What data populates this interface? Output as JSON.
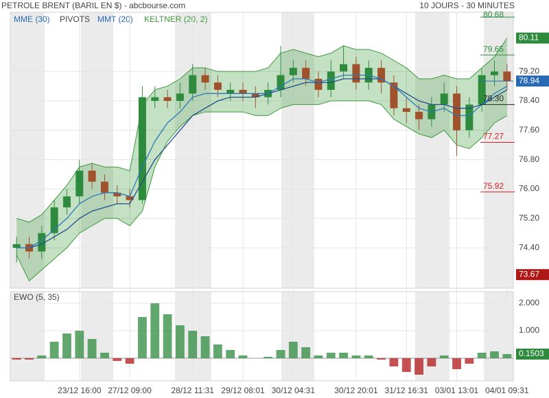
{
  "chart_data": {
    "type": "candlestick",
    "title": "PETROLE BRENT (BARIL EN $) - abcbourse.com",
    "subtitle": "10 JOURS - 30 MINUTES",
    "categories": [
      null,
      null,
      null,
      null,
      null,
      "23/12 16:00",
      null,
      null,
      null,
      "27/12 09:00",
      null,
      null,
      null,
      null,
      "28/12 11:31",
      null,
      null,
      null,
      "29/12 08:01",
      null,
      null,
      null,
      "30/12 04:31",
      null,
      null,
      null,
      null,
      "30/12 20:01",
      null,
      null,
      null,
      "31/12 16:31",
      null,
      null,
      null,
      "03/01 13:01",
      null,
      null,
      null,
      "04/01 09:31"
    ],
    "open": [
      74.4,
      74.5,
      74.3,
      74.8,
      75.5,
      75.8,
      76.5,
      76.2,
      75.9,
      75.8,
      75.7,
      78.4,
      78.5,
      78.4,
      78.6,
      79.1,
      78.9,
      78.6,
      78.7,
      78.6,
      78.5,
      78.7,
      79.1,
      79.3,
      79.0,
      78.7,
      79.2,
      79.4,
      78.9,
      79.3,
      78.9,
      78.2,
      78.1,
      77.9,
      78.3,
      78.6,
      77.6,
      78.3,
      79.1,
      79.2
    ],
    "high": [
      74.7,
      74.7,
      75.0,
      75.7,
      76.0,
      76.8,
      76.7,
      76.4,
      76.1,
      76.0,
      78.8,
      78.8,
      78.7,
      78.9,
      79.4,
      79.3,
      79.1,
      78.9,
      78.9,
      78.8,
      78.9,
      79.9,
      79.5,
      79.5,
      79.2,
      79.5,
      79.9,
      79.6,
      79.5,
      79.5,
      79.1,
      78.5,
      78.3,
      78.5,
      78.9,
      78.8,
      78.5,
      79.3,
      79.5,
      79.4
    ],
    "low": [
      74.0,
      74.1,
      74.1,
      74.6,
      75.3,
      75.6,
      76.0,
      75.7,
      75.6,
      75.5,
      75.6,
      78.2,
      78.2,
      78.2,
      78.4,
      78.7,
      78.5,
      78.4,
      78.4,
      78.2,
      78.3,
      78.5,
      78.9,
      78.8,
      78.5,
      78.5,
      79.0,
      78.7,
      78.7,
      78.6,
      78.0,
      77.8,
      77.6,
      77.7,
      78.1,
      76.9,
      77.4,
      78.1,
      78.8,
      78.7
    ],
    "close": [
      74.5,
      74.3,
      74.8,
      75.5,
      75.8,
      76.5,
      76.2,
      75.9,
      75.8,
      75.7,
      78.5,
      78.5,
      78.4,
      78.6,
      79.1,
      78.9,
      78.7,
      78.7,
      78.6,
      78.5,
      78.7,
      79.1,
      79.3,
      79.0,
      78.7,
      79.2,
      79.4,
      78.9,
      79.3,
      78.9,
      78.2,
      78.1,
      77.9,
      78.3,
      78.6,
      77.6,
      78.3,
      79.1,
      79.2,
      78.94
    ],
    "up_color": "#2e8b3e",
    "down_color": "#a0522d",
    "series": [
      {
        "name": "MME (30)",
        "color": "#1f4e8c",
        "values": [
          74.4,
          74.4,
          74.5,
          74.7,
          74.9,
          75.2,
          75.4,
          75.5,
          75.6,
          75.6,
          76.2,
          76.8,
          77.2,
          77.6,
          78.0,
          78.2,
          78.4,
          78.5,
          78.5,
          78.5,
          78.6,
          78.7,
          78.8,
          78.9,
          78.9,
          78.9,
          79.0,
          79.0,
          79.0,
          79.0,
          78.8,
          78.6,
          78.4,
          78.3,
          78.3,
          78.2,
          78.2,
          78.3,
          78.5,
          78.7
        ]
      },
      {
        "name": "MMT (20)",
        "color": "#2a7ab8",
        "values": [
          74.4,
          74.4,
          74.6,
          74.9,
          75.2,
          75.6,
          75.8,
          75.9,
          75.9,
          75.8,
          76.6,
          77.3,
          77.8,
          78.1,
          78.5,
          78.6,
          78.6,
          78.6,
          78.6,
          78.6,
          78.6,
          78.8,
          79.0,
          79.0,
          78.9,
          79.0,
          79.1,
          79.1,
          79.1,
          79.0,
          78.8,
          78.5,
          78.2,
          78.1,
          78.2,
          78.0,
          78.0,
          78.3,
          78.6,
          78.8
        ]
      },
      {
        "name": "KELTNER (20, 2)",
        "color": "#3a9a3a",
        "upper": [
          75.2,
          75.1,
          75.3,
          75.7,
          76.1,
          76.6,
          76.7,
          76.6,
          76.6,
          76.5,
          78.3,
          78.7,
          78.8,
          79.0,
          79.3,
          79.3,
          79.2,
          79.2,
          79.2,
          79.2,
          79.3,
          79.7,
          79.8,
          79.7,
          79.6,
          79.7,
          79.9,
          79.8,
          79.8,
          79.7,
          79.5,
          79.3,
          79.0,
          79.0,
          79.1,
          79.0,
          79.0,
          79.3,
          79.6,
          80.11
        ],
        "lower": [
          74.2,
          73.5,
          73.8,
          74.1,
          74.4,
          74.8,
          75.0,
          75.2,
          75.2,
          75.0,
          75.4,
          76.6,
          77.3,
          77.7,
          78.0,
          78.1,
          78.1,
          78.1,
          78.1,
          78.0,
          78.0,
          78.2,
          78.3,
          78.3,
          78.3,
          78.4,
          78.4,
          78.4,
          78.4,
          78.3,
          77.9,
          77.7,
          77.5,
          77.4,
          77.6,
          77.2,
          77.1,
          77.4,
          77.8,
          78.0
        ]
      }
    ],
    "pivots": {
      "name": "PIVOTS",
      "levels": [
        {
          "value": 80.68,
          "label": "80.68",
          "color": "#2e8b3e"
        },
        {
          "value": 79.65,
          "label": "79.65",
          "color": "#2e8b3e"
        },
        {
          "value": 78.3,
          "label": "78.30",
          "color": "#222222"
        },
        {
          "value": 77.27,
          "label": "77.27",
          "color": "#d42020"
        },
        {
          "value": 75.92,
          "label": "75.92",
          "color": "#d42020"
        }
      ]
    },
    "markers": [
      {
        "value": 73.67,
        "color": "#b01818"
      }
    ],
    "last_color": "#2a6ab5",
    "ylim": [
      73.3,
      80.81
    ],
    "yticks": [
      {
        "value": 74.4,
        "label": "74.40"
      },
      {
        "value": 75.2,
        "label": "75.20"
      },
      {
        "value": 76.0,
        "label": "76.00"
      },
      {
        "value": 76.8,
        "label": "76.80"
      },
      {
        "value": 77.6,
        "label": "77.60"
      },
      {
        "value": 78.4,
        "label": "78.40"
      },
      {
        "value": 79.2,
        "label": "79.20"
      }
    ],
    "ewo": {
      "type": "bar",
      "name": "EWO (5, 35)",
      "up_color": "#2e8b3e",
      "down_color": "#b01818",
      "values": [
        -0.05,
        -0.05,
        0.1,
        0.6,
        0.9,
        1.0,
        0.7,
        0.2,
        -0.1,
        -0.2,
        1.5,
        2.0,
        1.6,
        1.2,
        1.0,
        0.8,
        0.5,
        0.3,
        0.1,
        0.0,
        0.05,
        0.3,
        0.6,
        0.4,
        0.1,
        0.2,
        0.2,
        0.1,
        0.1,
        -0.05,
        -0.3,
        -0.5,
        -0.6,
        -0.3,
        0.1,
        -0.4,
        -0.2,
        0.2,
        0.25,
        0.1503
      ],
      "ylim": [
        -0.825,
        2.425
      ],
      "yticks": [
        {
          "value": 1,
          "label": "1.000"
        },
        {
          "value": 2,
          "label": "2.000"
        }
      ]
    }
  }
}
